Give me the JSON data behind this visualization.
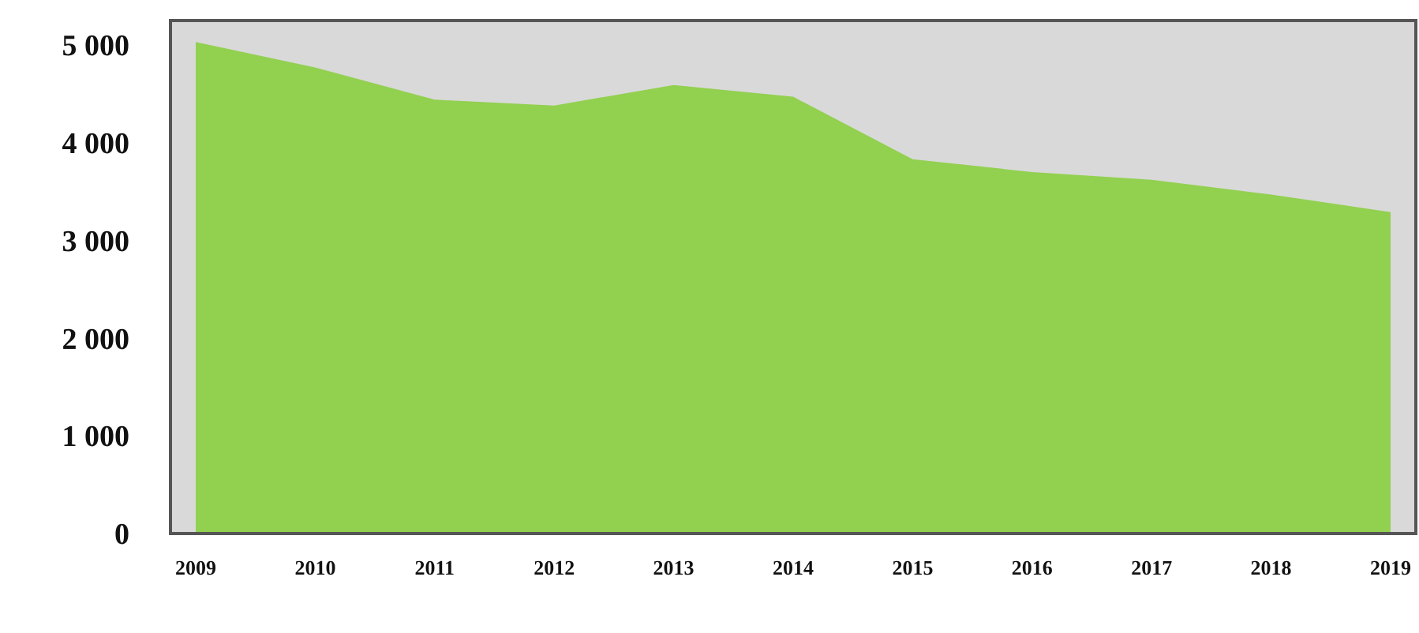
{
  "chart_data": {
    "type": "area",
    "categories": [
      "2009",
      "2010",
      "2011",
      "2012",
      "2013",
      "2014",
      "2015",
      "2016",
      "2017",
      "2018",
      "2019"
    ],
    "values": [
      5030,
      4770,
      4440,
      4380,
      4590,
      4470,
      3830,
      3700,
      3620,
      3470,
      3290
    ],
    "color": "#92d050",
    "ylim": [
      0,
      5250
    ],
    "yticks": [
      {
        "value": 0,
        "label": "0"
      },
      {
        "value": 1000,
        "label": "1 000"
      },
      {
        "value": 2000,
        "label": "2 000"
      },
      {
        "value": 3000,
        "label": "3 000"
      },
      {
        "value": 4000,
        "label": "4 000"
      },
      {
        "value": 5000,
        "label": "5 000"
      }
    ],
    "grid": false
  }
}
